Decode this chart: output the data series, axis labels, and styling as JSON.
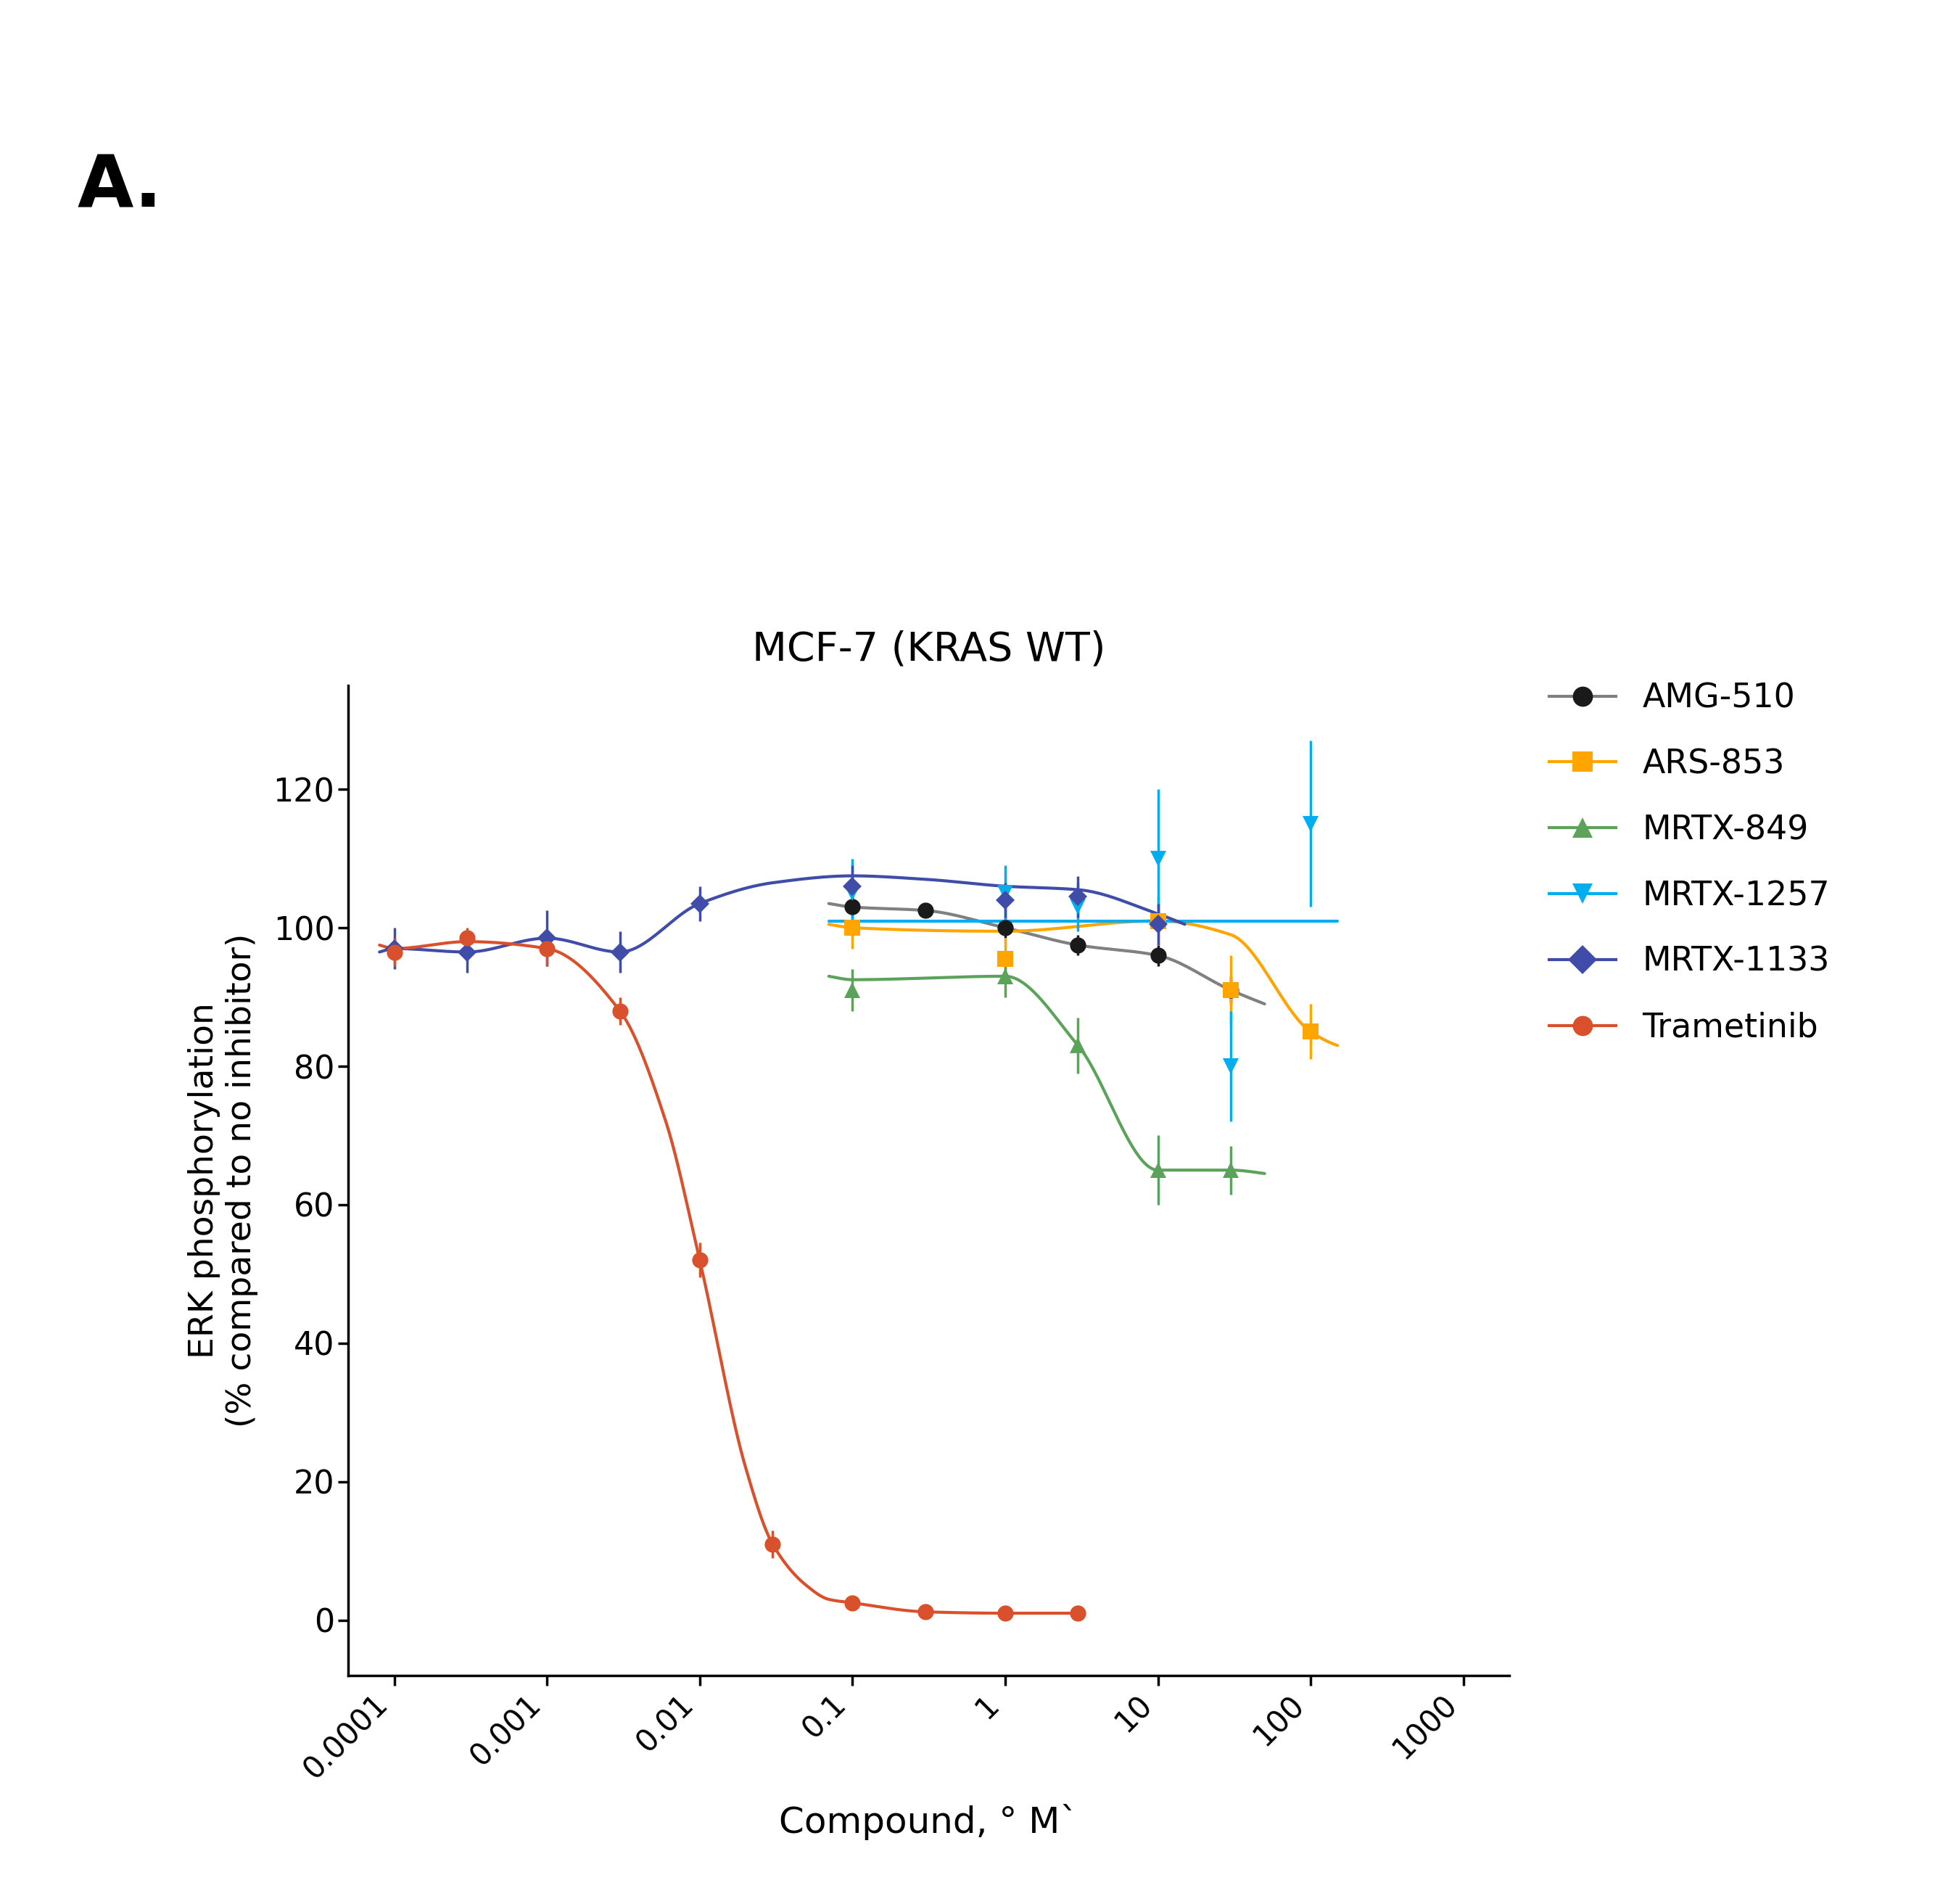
{
  "title": "MCF-7 (KRAS WT)",
  "xlabel": "Compound, ° M`",
  "ylabel": "ERK phosphorylation\n(% compared to no inhibitor)",
  "panel_label": "A.",
  "background_color": "#ffffff",
  "ylim": [
    -8,
    135
  ],
  "yticks": [
    0,
    20,
    40,
    60,
    80,
    100,
    120
  ],
  "series": [
    {
      "name": "AMG-510",
      "color": "#1a1a1a",
      "line_color": "#808080",
      "marker": "o",
      "markersize": 16,
      "x": [
        0.1,
        0.3,
        1.0,
        3.0,
        10.0,
        30.0
      ],
      "y": [
        103.0,
        102.5,
        100.0,
        97.5,
        96.0,
        91.0
      ],
      "yerr": [
        1.5,
        1.0,
        1.5,
        1.5,
        1.5,
        2.0
      ],
      "fit_x": [
        0.07,
        0.1,
        0.3,
        1.0,
        3.0,
        10.0,
        30.0,
        50.0
      ],
      "fit_y": [
        103.5,
        103.0,
        102.5,
        100.0,
        97.5,
        96.0,
        91.0,
        89.0
      ]
    },
    {
      "name": "ARS-853",
      "color": "#FFA500",
      "line_color": "#FFA500",
      "marker": "s",
      "markersize": 16,
      "x": [
        0.1,
        1.0,
        10.0,
        30.0,
        100.0
      ],
      "y": [
        100.0,
        95.5,
        101.0,
        91.0,
        85.0
      ],
      "yerr": [
        3.0,
        3.0,
        3.5,
        5.0,
        4.0
      ],
      "fit_x": [
        0.07,
        0.1,
        1.0,
        10.0,
        30.0,
        100.0,
        150.0
      ],
      "fit_y": [
        100.5,
        100.0,
        99.5,
        101.0,
        99.0,
        85.0,
        83.0
      ]
    },
    {
      "name": "MRTX-849",
      "color": "#5BA35B",
      "line_color": "#5BA35B",
      "marker": "^",
      "markersize": 16,
      "x": [
        0.1,
        1.0,
        3.0,
        10.0,
        30.0
      ],
      "y": [
        91.0,
        93.0,
        83.0,
        65.0,
        65.0
      ],
      "yerr": [
        3.0,
        3.0,
        4.0,
        5.0,
        3.5
      ],
      "fit_x": [
        0.07,
        0.1,
        1.0,
        3.0,
        10.0,
        30.0,
        50.0
      ],
      "fit_y": [
        93.0,
        92.5,
        93.0,
        83.0,
        65.0,
        65.0,
        64.5
      ]
    },
    {
      "name": "MRTX-1257",
      "color": "#00AEEF",
      "line_color": "#00AEEF",
      "marker": "v",
      "markersize": 16,
      "x": [
        0.1,
        1.0,
        3.0,
        10.0,
        30.0,
        100.0
      ],
      "y": [
        105.0,
        105.0,
        103.0,
        110.0,
        80.0,
        115.0
      ],
      "yerr": [
        5.0,
        4.0,
        3.5,
        10.0,
        8.0,
        12.0
      ],
      "fit_x": [
        0.07,
        0.1,
        1.0,
        3.0,
        10.0,
        30.0,
        100.0,
        150.0
      ],
      "fit_y": [
        101.0,
        101.0,
        101.0,
        101.0,
        101.0,
        101.0,
        101.0,
        101.0
      ]
    },
    {
      "name": "MRTX-1133",
      "color": "#3F4CA8",
      "line_color": "#3F4CA8",
      "marker": "D",
      "markersize": 13,
      "x": [
        0.0001,
        0.0003,
        0.001,
        0.003,
        0.01,
        0.1,
        1.0,
        3.0,
        10.0
      ],
      "y": [
        97.0,
        96.5,
        98.5,
        96.5,
        103.5,
        106.0,
        104.0,
        104.5,
        100.5
      ],
      "yerr": [
        3.0,
        3.0,
        4.0,
        3.0,
        2.5,
        3.0,
        2.5,
        3.0,
        3.0
      ],
      "fit_x": [
        8e-05,
        0.0001,
        0.0003,
        0.001,
        0.003,
        0.01,
        0.03,
        0.1,
        0.3,
        1.0,
        3.0,
        10.0,
        15.0
      ],
      "fit_y": [
        96.5,
        97.0,
        96.5,
        98.5,
        96.5,
        103.5,
        106.5,
        107.5,
        107.0,
        106.0,
        105.5,
        102.0,
        100.5
      ]
    },
    {
      "name": "Trametinib",
      "color": "#D9512C",
      "line_color": "#D9512C",
      "marker": "o",
      "markersize": 16,
      "x": [
        0.0001,
        0.0003,
        0.001,
        0.003,
        0.01,
        0.03,
        0.1,
        0.3,
        1.0,
        3.0
      ],
      "y": [
        96.5,
        98.5,
        97.0,
        88.0,
        52.0,
        11.0,
        2.5,
        1.2,
        1.0,
        1.0
      ],
      "yerr": [
        2.0,
        1.5,
        2.5,
        2.0,
        2.5,
        2.0,
        1.0,
        0.5,
        0.5,
        0.5
      ],
      "fit_x": [
        8e-05,
        0.0001,
        0.0003,
        0.001,
        0.003,
        0.006,
        0.01,
        0.02,
        0.03,
        0.05,
        0.07,
        0.1,
        0.3,
        1.0,
        3.0
      ],
      "fit_y": [
        97.5,
        97.0,
        98.0,
        97.0,
        88.0,
        72.0,
        52.0,
        22.0,
        11.0,
        5.0,
        3.0,
        2.5,
        1.2,
        1.0,
        1.0
      ]
    }
  ]
}
